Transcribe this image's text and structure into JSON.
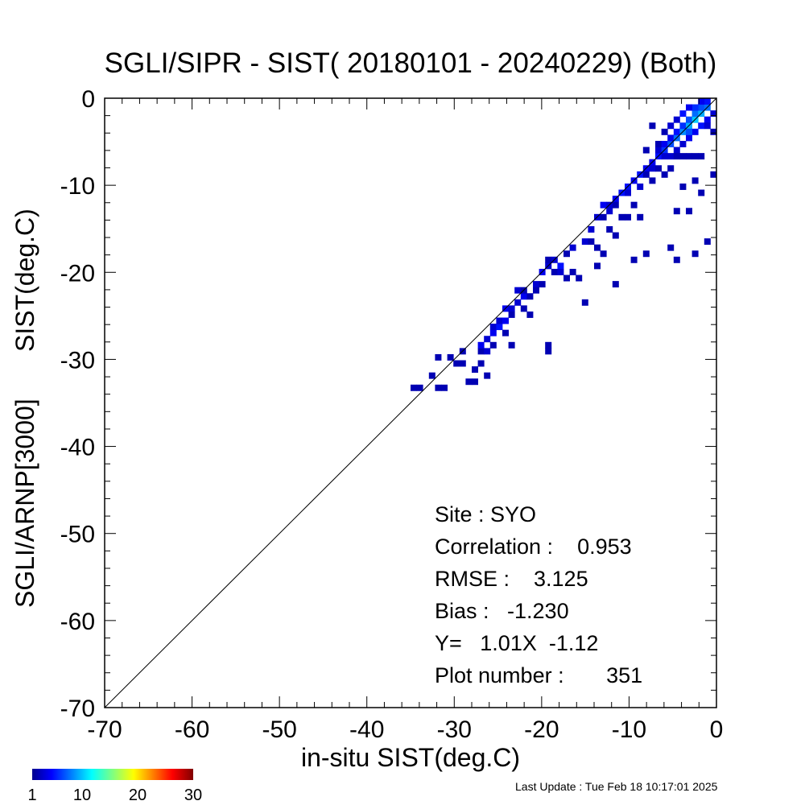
{
  "chart_data": {
    "type": "heatmap",
    "title": "SGLI/SIPR - SIST( 20180101 - 20240229) (Both)",
    "xlabel": "in-situ SIST(deg.C)",
    "ylabel_parts": [
      "SGLI/ARNP[3000]",
      "SIST(deg.C)"
    ],
    "xlim": [
      -70,
      0
    ],
    "ylim": [
      -70,
      0
    ],
    "x_ticks": [
      -70,
      -60,
      -50,
      -40,
      -30,
      -20,
      -10,
      0
    ],
    "y_ticks": [
      -70,
      -60,
      -50,
      -40,
      -30,
      -20,
      -10,
      0
    ],
    "one_to_one_line": true,
    "grid": false,
    "colorbar": {
      "min": 1,
      "max": 30,
      "tick_labels": [
        "1",
        "10",
        "20",
        "30"
      ],
      "colormap": "jet"
    },
    "stats": {
      "site_line": "Site : SYO",
      "correlation_line": "Correlation :    0.953",
      "rmse_line": "RMSE :    3.125",
      "bias_line": "Bias :   -1.230",
      "regression_line": "Y=   1.01X  -1.12",
      "plot_number_line": "Plot number :       351"
    },
    "cell_size": 0.7,
    "cells": [
      {
        "x": -35.0,
        "y": -33.6,
        "c": 1
      },
      {
        "x": -34.3,
        "y": -33.6,
        "c": 1
      },
      {
        "x": -32.9,
        "y": -32.2,
        "c": 1
      },
      {
        "x": -32.2,
        "y": -33.6,
        "c": 1
      },
      {
        "x": -31.5,
        "y": -33.6,
        "c": 1
      },
      {
        "x": -32.2,
        "y": -30.1,
        "c": 1
      },
      {
        "x": -30.8,
        "y": -30.1,
        "c": 1
      },
      {
        "x": -30.1,
        "y": -30.8,
        "c": 1
      },
      {
        "x": -29.4,
        "y": -30.8,
        "c": 1
      },
      {
        "x": -29.4,
        "y": -29.4,
        "c": 1
      },
      {
        "x": -28.7,
        "y": -32.9,
        "c": 1
      },
      {
        "x": -28.0,
        "y": -32.9,
        "c": 1
      },
      {
        "x": -28.0,
        "y": -31.5,
        "c": 1
      },
      {
        "x": -27.3,
        "y": -30.8,
        "c": 1
      },
      {
        "x": -27.3,
        "y": -29.4,
        "c": 1
      },
      {
        "x": -27.3,
        "y": -28.7,
        "c": 3
      },
      {
        "x": -26.6,
        "y": -28.0,
        "c": 2
      },
      {
        "x": -26.6,
        "y": -29.4,
        "c": 2
      },
      {
        "x": -26.6,
        "y": -32.2,
        "c": 1
      },
      {
        "x": -25.9,
        "y": -27.3,
        "c": 3
      },
      {
        "x": -25.9,
        "y": -28.7,
        "c": 1
      },
      {
        "x": -25.9,
        "y": -26.6,
        "c": 2
      },
      {
        "x": -25.2,
        "y": -26.6,
        "c": 4
      },
      {
        "x": -25.2,
        "y": -25.9,
        "c": 2
      },
      {
        "x": -24.5,
        "y": -25.9,
        "c": 3
      },
      {
        "x": -24.5,
        "y": -24.5,
        "c": 3
      },
      {
        "x": -24.5,
        "y": -27.3,
        "c": 1
      },
      {
        "x": -23.8,
        "y": -24.5,
        "c": 2
      },
      {
        "x": -23.8,
        "y": -25.2,
        "c": 1
      },
      {
        "x": -23.8,
        "y": -28.7,
        "c": 1
      },
      {
        "x": -23.1,
        "y": -22.4,
        "c": 2
      },
      {
        "x": -23.1,
        "y": -23.8,
        "c": 2
      },
      {
        "x": -22.4,
        "y": -23.1,
        "c": 3
      },
      {
        "x": -22.4,
        "y": -22.4,
        "c": 1
      },
      {
        "x": -22.4,
        "y": -24.5,
        "c": 1
      },
      {
        "x": -21.7,
        "y": -23.1,
        "c": 1
      },
      {
        "x": -21.7,
        "y": -25.2,
        "c": 1
      },
      {
        "x": -21.0,
        "y": -21.7,
        "c": 2
      },
      {
        "x": -21.0,
        "y": -22.4,
        "c": 1
      },
      {
        "x": -20.3,
        "y": -20.3,
        "c": 3
      },
      {
        "x": -20.3,
        "y": -21.7,
        "c": 1
      },
      {
        "x": -19.6,
        "y": -19.6,
        "c": 2
      },
      {
        "x": -19.6,
        "y": -18.9,
        "c": 1
      },
      {
        "x": -19.6,
        "y": -28.7,
        "c": 1
      },
      {
        "x": -19.6,
        "y": -29.4,
        "c": 1
      },
      {
        "x": -18.9,
        "y": -18.9,
        "c": 2
      },
      {
        "x": -18.9,
        "y": -20.3,
        "c": 1
      },
      {
        "x": -18.2,
        "y": -19.6,
        "c": 4
      },
      {
        "x": -18.2,
        "y": -20.3,
        "c": 2
      },
      {
        "x": -17.5,
        "y": -18.2,
        "c": 1
      },
      {
        "x": -17.5,
        "y": -21.0,
        "c": 1
      },
      {
        "x": -16.8,
        "y": -17.5,
        "c": 2
      },
      {
        "x": -16.8,
        "y": -20.3,
        "c": 1
      },
      {
        "x": -16.1,
        "y": -21.0,
        "c": 1
      },
      {
        "x": -15.4,
        "y": -16.8,
        "c": 2
      },
      {
        "x": -15.4,
        "y": -23.8,
        "c": 1
      },
      {
        "x": -14.7,
        "y": -15.4,
        "c": 2
      },
      {
        "x": -14.7,
        "y": -16.8,
        "c": 1
      },
      {
        "x": -14.0,
        "y": -14.0,
        "c": 2
      },
      {
        "x": -14.0,
        "y": -17.5,
        "c": 1
      },
      {
        "x": -14.0,
        "y": -19.6,
        "c": 1
      },
      {
        "x": -13.3,
        "y": -12.6,
        "c": 3
      },
      {
        "x": -13.3,
        "y": -14.0,
        "c": 1
      },
      {
        "x": -13.3,
        "y": -18.2,
        "c": 1
      },
      {
        "x": -12.6,
        "y": -12.6,
        "c": 2
      },
      {
        "x": -12.6,
        "y": -13.3,
        "c": 2
      },
      {
        "x": -12.6,
        "y": -15.4,
        "c": 1
      },
      {
        "x": -11.9,
        "y": -11.9,
        "c": 3
      },
      {
        "x": -11.9,
        "y": -12.6,
        "c": 1
      },
      {
        "x": -11.9,
        "y": -16.1,
        "c": 1
      },
      {
        "x": -11.9,
        "y": -21.7,
        "c": 1
      },
      {
        "x": -11.2,
        "y": -11.2,
        "c": 4
      },
      {
        "x": -11.2,
        "y": -14.0,
        "c": 1
      },
      {
        "x": -10.5,
        "y": -10.5,
        "c": 4
      },
      {
        "x": -10.5,
        "y": -11.2,
        "c": 2
      },
      {
        "x": -10.5,
        "y": -14.0,
        "c": 1
      },
      {
        "x": -9.8,
        "y": -9.8,
        "c": 3
      },
      {
        "x": -9.8,
        "y": -12.6,
        "c": 1
      },
      {
        "x": -9.8,
        "y": -18.9,
        "c": 1
      },
      {
        "x": -9.1,
        "y": -9.1,
        "c": 4
      },
      {
        "x": -9.1,
        "y": -10.5,
        "c": 2
      },
      {
        "x": -9.1,
        "y": -14.0,
        "c": 1
      },
      {
        "x": -8.4,
        "y": -8.4,
        "c": 3
      },
      {
        "x": -8.4,
        "y": -9.1,
        "c": 1
      },
      {
        "x": -8.4,
        "y": -6.3,
        "c": 1
      },
      {
        "x": -8.4,
        "y": -18.2,
        "c": 1
      },
      {
        "x": -7.7,
        "y": -7.7,
        "c": 3
      },
      {
        "x": -7.7,
        "y": -8.4,
        "c": 2
      },
      {
        "x": -7.7,
        "y": -9.8,
        "c": 1
      },
      {
        "x": -7.7,
        "y": -3.5,
        "c": 1
      },
      {
        "x": -7.0,
        "y": -7.0,
        "c": 4
      },
      {
        "x": -7.0,
        "y": -6.3,
        "c": 2
      },
      {
        "x": -7.0,
        "y": -8.4,
        "c": 1
      },
      {
        "x": -7.0,
        "y": -5.6,
        "c": 1
      },
      {
        "x": -6.3,
        "y": -6.3,
        "c": 5
      },
      {
        "x": -6.3,
        "y": -5.6,
        "c": 3
      },
      {
        "x": -6.3,
        "y": -7.0,
        "c": 2
      },
      {
        "x": -6.3,
        "y": -9.1,
        "c": 1
      },
      {
        "x": -5.6,
        "y": -5.6,
        "c": 6
      },
      {
        "x": -5.6,
        "y": -4.9,
        "c": 3
      },
      {
        "x": -5.6,
        "y": -7.0,
        "c": 2
      },
      {
        "x": -5.6,
        "y": -8.4,
        "c": 1
      },
      {
        "x": -5.6,
        "y": -17.5,
        "c": 1
      },
      {
        "x": -4.9,
        "y": -4.9,
        "c": 7
      },
      {
        "x": -4.9,
        "y": -4.2,
        "c": 4
      },
      {
        "x": -4.9,
        "y": -6.3,
        "c": 2
      },
      {
        "x": -4.9,
        "y": -7.0,
        "c": 1
      },
      {
        "x": -4.9,
        "y": -18.9,
        "c": 1
      },
      {
        "x": -4.9,
        "y": -13.3,
        "c": 1
      },
      {
        "x": -4.2,
        "y": -4.2,
        "c": 8
      },
      {
        "x": -4.2,
        "y": -3.5,
        "c": 5
      },
      {
        "x": -4.2,
        "y": -5.6,
        "c": 2
      },
      {
        "x": -4.2,
        "y": -7.0,
        "c": 1
      },
      {
        "x": -4.2,
        "y": -10.5,
        "c": 1
      },
      {
        "x": -3.5,
        "y": -3.5,
        "c": 9
      },
      {
        "x": -3.5,
        "y": -2.8,
        "c": 6
      },
      {
        "x": -3.5,
        "y": -4.9,
        "c": 3
      },
      {
        "x": -3.5,
        "y": -7.0,
        "c": 1
      },
      {
        "x": -3.5,
        "y": -13.3,
        "c": 1
      },
      {
        "x": -2.8,
        "y": -2.8,
        "c": 10
      },
      {
        "x": -2.8,
        "y": -2.1,
        "c": 7
      },
      {
        "x": -2.8,
        "y": -4.2,
        "c": 3
      },
      {
        "x": -2.8,
        "y": -7.0,
        "c": 1
      },
      {
        "x": -2.8,
        "y": -18.2,
        "c": 1
      },
      {
        "x": -2.8,
        "y": -9.8,
        "c": 1
      },
      {
        "x": -2.1,
        "y": -2.1,
        "c": 9
      },
      {
        "x": -2.1,
        "y": -1.4,
        "c": 6
      },
      {
        "x": -2.1,
        "y": -3.5,
        "c": 4
      },
      {
        "x": -2.1,
        "y": -7.0,
        "c": 1
      },
      {
        "x": -2.1,
        "y": -11.2,
        "c": 1
      },
      {
        "x": -1.4,
        "y": -1.4,
        "c": 7
      },
      {
        "x": -1.4,
        "y": -2.8,
        "c": 3
      },
      {
        "x": -1.4,
        "y": -3.5,
        "c": 2
      },
      {
        "x": -1.4,
        "y": -16.8,
        "c": 1
      },
      {
        "x": -0.7,
        "y": -2.1,
        "c": 2
      },
      {
        "x": -0.7,
        "y": -4.2,
        "c": 1
      },
      {
        "x": -0.7,
        "y": -9.1,
        "c": 1
      },
      {
        "x": -1.4,
        "y": -0.7,
        "c": 4
      },
      {
        "x": -2.8,
        "y": -1.4,
        "c": 5
      },
      {
        "x": -3.5,
        "y": -1.4,
        "c": 3
      },
      {
        "x": -4.9,
        "y": -2.8,
        "c": 2
      },
      {
        "x": -5.6,
        "y": -3.5,
        "c": 2
      },
      {
        "x": -6.3,
        "y": -4.2,
        "c": 1
      },
      {
        "x": -2.1,
        "y": -0.7,
        "c": 3
      },
      {
        "x": -4.2,
        "y": -2.1,
        "c": 4
      },
      {
        "x": -3.5,
        "y": -4.2,
        "c": 6
      }
    ]
  },
  "footer": {
    "last_update": "Last Update : Tue Feb 18 10:17:01 2025"
  }
}
